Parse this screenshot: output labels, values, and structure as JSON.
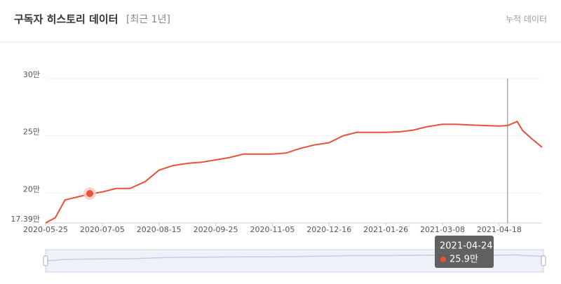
{
  "header": {
    "title": "구독자 히스토리 데이터",
    "subtitle": "[최근 1년]",
    "toggle": "누적 데이터"
  },
  "chart_data": {
    "type": "line",
    "x": [
      "2020-05-25",
      "2020-06-01",
      "2020-06-08",
      "2020-06-15",
      "2020-06-25",
      "2020-07-05",
      "2020-07-15",
      "2020-07-25",
      "2020-08-05",
      "2020-08-15",
      "2020-08-25",
      "2020-09-05",
      "2020-09-15",
      "2020-09-25",
      "2020-10-05",
      "2020-10-15",
      "2020-10-25",
      "2020-11-05",
      "2020-11-15",
      "2020-11-25",
      "2020-12-05",
      "2020-12-16",
      "2020-12-26",
      "2021-01-05",
      "2021-01-15",
      "2021-01-26",
      "2021-02-05",
      "2021-02-15",
      "2021-02-25",
      "2021-03-08",
      "2021-03-18",
      "2021-03-28",
      "2021-04-08",
      "2021-04-18",
      "2021-04-24",
      "2021-05-01",
      "2021-05-05",
      "2021-05-12",
      "2021-05-19"
    ],
    "values": [
      17.39,
      17.85,
      19.4,
      19.6,
      19.9,
      20.1,
      20.4,
      20.4,
      21.0,
      22.0,
      22.4,
      22.6,
      22.7,
      22.9,
      23.1,
      23.4,
      23.4,
      23.4,
      23.5,
      23.9,
      24.2,
      24.4,
      25.0,
      25.3,
      25.3,
      25.3,
      25.35,
      25.5,
      25.8,
      26.0,
      26.0,
      25.95,
      25.9,
      25.85,
      25.9,
      26.25,
      25.45,
      24.7,
      24.0
    ],
    "color": "#e8503a",
    "xlim": [
      "2020-05-25",
      "2021-05-19"
    ],
    "xticks": [
      "2020-05-25",
      "2020-07-05",
      "2020-08-15",
      "2020-09-25",
      "2020-11-05",
      "2020-12-16",
      "2021-01-26",
      "2021-03-08",
      "2021-04-18"
    ],
    "ylim": [
      17.39,
      30
    ],
    "yticks": [
      {
        "value": 17.39,
        "label": "17.39만"
      },
      {
        "value": 20,
        "label": "20만"
      },
      {
        "value": 25,
        "label": "25만"
      },
      {
        "value": 30,
        "label": "30만"
      }
    ],
    "grid": true,
    "tooltip": {
      "x": "2021-04-24",
      "value": 25.9,
      "label": "25.9만"
    }
  }
}
